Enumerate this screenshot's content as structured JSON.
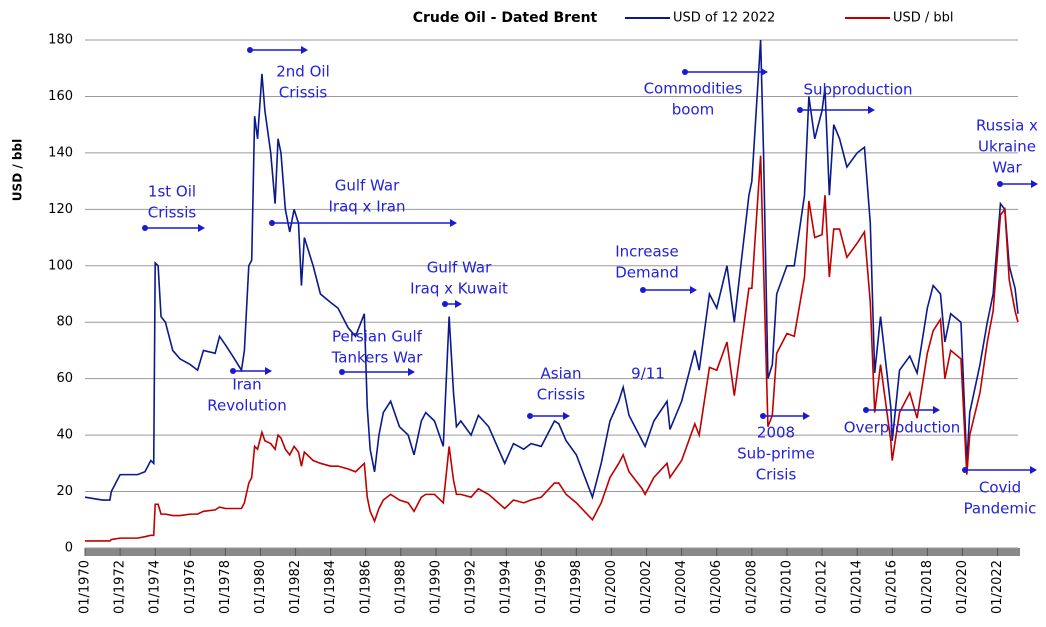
{
  "chart_data": {
    "type": "line",
    "title": "Crude Oil - Dated Brent",
    "y_label": "USD / bbl",
    "x": [
      "01/1970",
      "01/1971",
      "06/1971",
      "07/1971",
      "01/1972",
      "01/1973",
      "06/1973",
      "10/1973",
      "12/1973",
      "01/1974",
      "03/1974",
      "05/1974",
      "08/1974",
      "01/1975",
      "06/1975",
      "01/1976",
      "06/1976",
      "10/1976",
      "06/1977",
      "09/1977",
      "01/1978",
      "06/1978",
      "12/1978",
      "02/1979",
      "05/1979",
      "07/1979",
      "09/1979",
      "11/1979",
      "02/1980",
      "04/1980",
      "08/1980",
      "11/1980",
      "01/1981",
      "03/1981",
      "06/1981",
      "09/1981",
      "12/1981",
      "03/1982",
      "05/1982",
      "07/1982",
      "01/1983",
      "06/1983",
      "01/1984",
      "06/1984",
      "01/1985",
      "06/1985",
      "12/1985",
      "02/1986",
      "04/1986",
      "07/1986",
      "10/1986",
      "01/1987",
      "06/1987",
      "12/1987",
      "06/1988",
      "10/1988",
      "03/1989",
      "06/1989",
      "12/1989",
      "06/1990",
      "10/1990",
      "01/1991",
      "03/1991",
      "06/1991",
      "01/1992",
      "06/1992",
      "01/1993",
      "12/1993",
      "06/1994",
      "01/1995",
      "06/1995",
      "01/1996",
      "10/1996",
      "01/1997",
      "06/1997",
      "01/1998",
      "12/1998",
      "06/1999",
      "12/1999",
      "06/2000",
      "09/2000",
      "01/2001",
      "10/2001",
      "12/2001",
      "06/2002",
      "03/2003",
      "05/2003",
      "01/2004",
      "10/2004",
      "01/2005",
      "08/2005",
      "01/2006",
      "08/2006",
      "01/2007",
      "11/2007",
      "01/2008",
      "07/2008",
      "09/2008",
      "12/2008",
      "03/2009",
      "06/2009",
      "01/2010",
      "06/2010",
      "01/2011",
      "04/2011",
      "08/2011",
      "01/2012",
      "03/2012",
      "06/2012",
      "09/2012",
      "01/2013",
      "06/2013",
      "01/2014",
      "06/2014",
      "10/2014",
      "01/2015",
      "05/2015",
      "12/2015",
      "01/2016",
      "06/2016",
      "01/2017",
      "06/2017",
      "01/2018",
      "05/2018",
      "10/2018",
      "01/2019",
      "05/2019",
      "12/2019",
      "04/2020",
      "06/2020",
      "01/2021",
      "06/2021",
      "10/2021",
      "03/2022",
      "06/2022",
      "09/2022",
      "01/2023",
      "03/2023"
    ],
    "series": [
      {
        "name": "USD of 12 2022",
        "color": "#0a1a8c",
        "values": [
          18,
          17,
          17,
          20,
          26,
          26,
          27,
          31,
          30,
          101,
          100,
          82,
          80,
          70,
          67,
          65,
          63,
          70,
          69,
          75,
          72,
          68,
          63,
          70,
          100,
          102,
          153,
          145,
          168,
          155,
          140,
          122,
          145,
          140,
          120,
          112,
          120,
          115,
          93,
          110,
          100,
          90,
          87,
          85,
          78,
          75,
          83,
          50,
          35,
          27,
          40,
          48,
          52,
          43,
          40,
          33,
          45,
          48,
          45,
          36,
          82,
          55,
          43,
          45,
          40,
          47,
          43,
          30,
          37,
          35,
          37,
          36,
          45,
          44,
          38,
          33,
          18,
          30,
          45,
          52,
          57,
          47,
          38,
          36,
          45,
          52,
          42,
          52,
          70,
          63,
          90,
          85,
          100,
          80,
          125,
          130,
          180,
          140,
          60,
          65,
          90,
          100,
          100,
          125,
          160,
          145,
          155,
          163,
          125,
          150,
          145,
          135,
          140,
          142,
          115,
          62,
          82,
          50,
          38,
          63,
          68,
          62,
          85,
          93,
          90,
          73,
          83,
          80,
          30,
          48,
          65,
          80,
          90,
          122,
          120,
          100,
          92,
          83
        ]
      },
      {
        "name": "USD / bbl",
        "color": "#c00000",
        "values": [
          2.5,
          2.5,
          2.5,
          3,
          3.5,
          3.5,
          4,
          4.5,
          4.5,
          15.5,
          15.5,
          12,
          12,
          11.5,
          11.5,
          12,
          12,
          13,
          13.5,
          14.5,
          14,
          14,
          14,
          16,
          23,
          25,
          36,
          35,
          41,
          38,
          37,
          35,
          40,
          39,
          35,
          33,
          36,
          34,
          29,
          34,
          31,
          30,
          29,
          29,
          28,
          27,
          30,
          18,
          13,
          9.5,
          14,
          17,
          19,
          17,
          16,
          13,
          18,
          19,
          19,
          16,
          36,
          24,
          19,
          19,
          18,
          21,
          19,
          14,
          17,
          16,
          17,
          18,
          23,
          23,
          19,
          16,
          10,
          16,
          25,
          30,
          33,
          27,
          21,
          19,
          25,
          30,
          25,
          31,
          44,
          40,
          64,
          63,
          73,
          54,
          92,
          92,
          139,
          100,
          43,
          47,
          69,
          76,
          75,
          96,
          123,
          110,
          111,
          125,
          96,
          113,
          113,
          103,
          108,
          112,
          87,
          48,
          65,
          38,
          31,
          48,
          55,
          46,
          69,
          77,
          81,
          60,
          70,
          67,
          26,
          40,
          55,
          73,
          84,
          118,
          120,
          95,
          84,
          80
        ]
      }
    ],
    "xlim": [
      "01/1970",
      "03/2023"
    ],
    "xticks": [
      "01/1970",
      "01/1972",
      "01/1974",
      "01/1976",
      "01/1978",
      "01/1980",
      "01/1982",
      "01/1984",
      "01/1986",
      "01/1988",
      "01/1990",
      "01/1992",
      "01/1994",
      "01/1996",
      "01/1998",
      "01/2000",
      "01/2002",
      "01/2004",
      "01/2006",
      "01/2008",
      "01/2010",
      "01/2012",
      "01/2014",
      "01/2016",
      "01/2018",
      "01/2020",
      "01/2022"
    ],
    "ylim": [
      0,
      180
    ],
    "yticks": [
      0,
      20,
      40,
      60,
      80,
      100,
      120,
      140,
      160,
      180
    ],
    "grid": true,
    "legend": "top-right",
    "annotations": [
      {
        "lines": [
          "1st Oil",
          "Crissis"
        ]
      },
      {
        "lines": [
          "2nd Oil",
          "Crissis"
        ]
      },
      {
        "lines": [
          "Iran",
          "Revolution"
        ]
      },
      {
        "lines": [
          "Gulf War",
          "Iraq x Iran"
        ]
      },
      {
        "lines": [
          "Persian Gulf",
          "Tankers War"
        ]
      },
      {
        "lines": [
          "Gulf War",
          "Iraq x Kuwait"
        ]
      },
      {
        "lines": [
          "Asian",
          "Crissis"
        ]
      },
      {
        "lines": [
          "9/11"
        ]
      },
      {
        "lines": [
          "Increase",
          "Demand"
        ]
      },
      {
        "lines": [
          "Commodities",
          "boom"
        ]
      },
      {
        "lines": [
          "Subproduction"
        ]
      },
      {
        "lines": [
          "2008",
          "Sub-prime",
          "Crisis"
        ]
      },
      {
        "lines": [
          "Overproduction"
        ]
      },
      {
        "lines": [
          "Russia x",
          "Ukraine",
          "War"
        ]
      },
      {
        "lines": [
          "Covid",
          "Pandemic"
        ]
      }
    ]
  }
}
